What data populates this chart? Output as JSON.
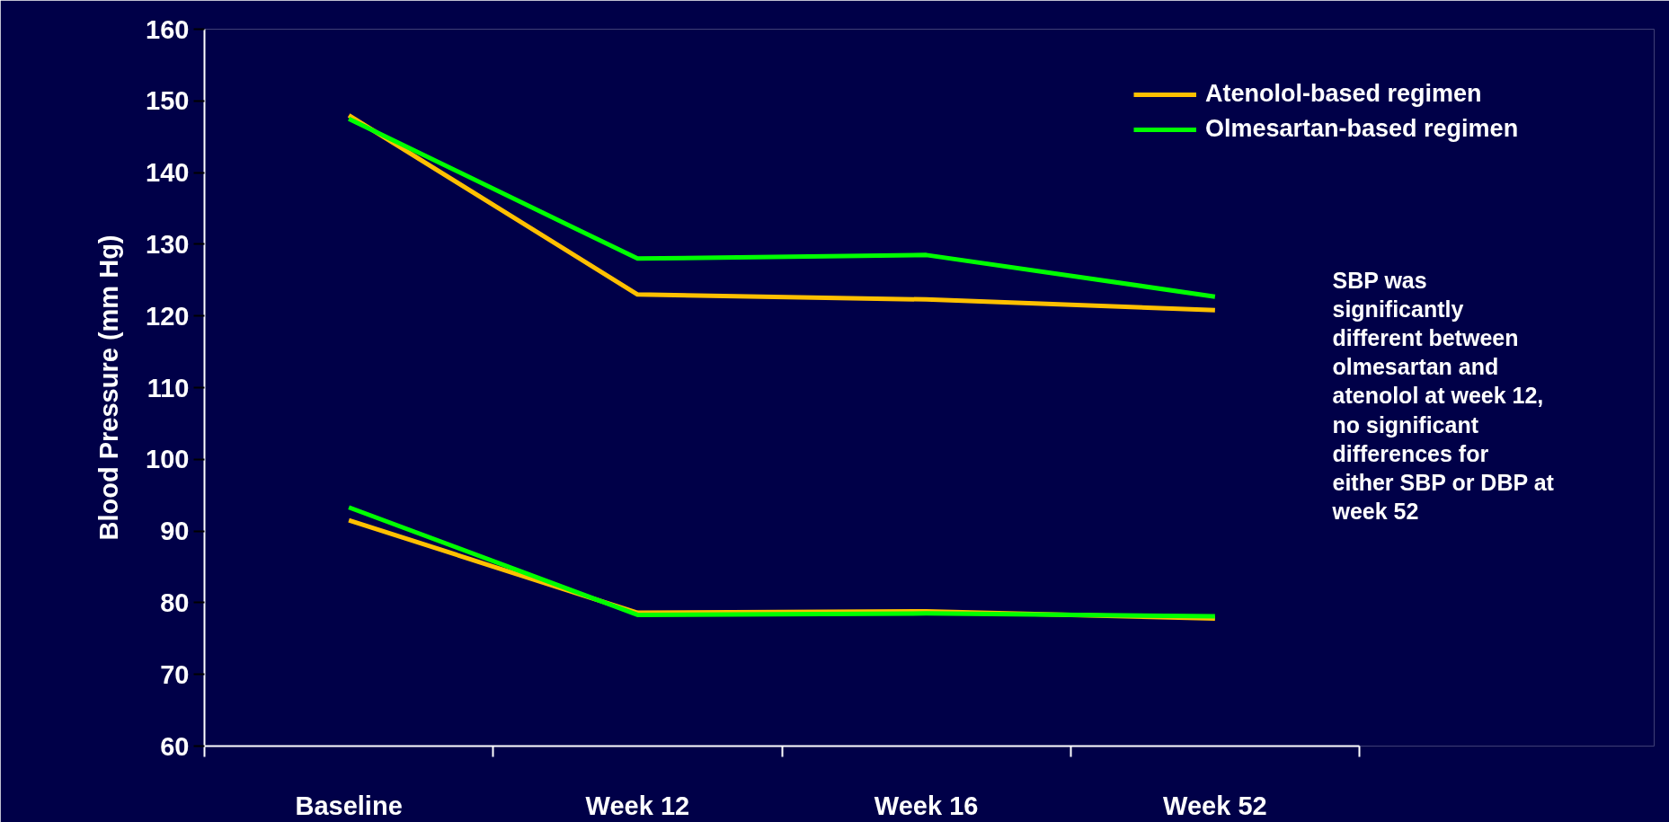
{
  "chart_data": {
    "type": "line",
    "ylabel": "Blood Pressure (mm Hg)",
    "categories": [
      "Baseline",
      "Week 12",
      "Week 16",
      "Week 52"
    ],
    "series": [
      {
        "name": "Atenolol-based regimen",
        "color": "#ffc000",
        "values": [
          148,
          123,
          122.3,
          120.8
        ]
      },
      {
        "name": "Olmesartan-based regimen",
        "color": "#00ff00",
        "values": [
          147.5,
          128,
          128.5,
          122.7
        ]
      },
      {
        "color": "#ffc000",
        "values": [
          91.5,
          78.6,
          78.8,
          77.8
        ]
      },
      {
        "color": "#00ff00",
        "values": [
          93.3,
          78.3,
          78.5,
          78.1
        ]
      }
    ],
    "ylim": [
      60,
      160
    ],
    "yticks": [
      60,
      70,
      80,
      90,
      100,
      110,
      120,
      130,
      140,
      150,
      160
    ],
    "grid": false,
    "legend": "top right",
    "marker": "none",
    "line_style": "solid",
    "annotations": [
      "SBP was\nsignificantly\ndifferent between\nolmesartan and\natenolol at week 12,\nno significant\ndifferences for\neither SBP or DBP at\nweek 52"
    ]
  }
}
